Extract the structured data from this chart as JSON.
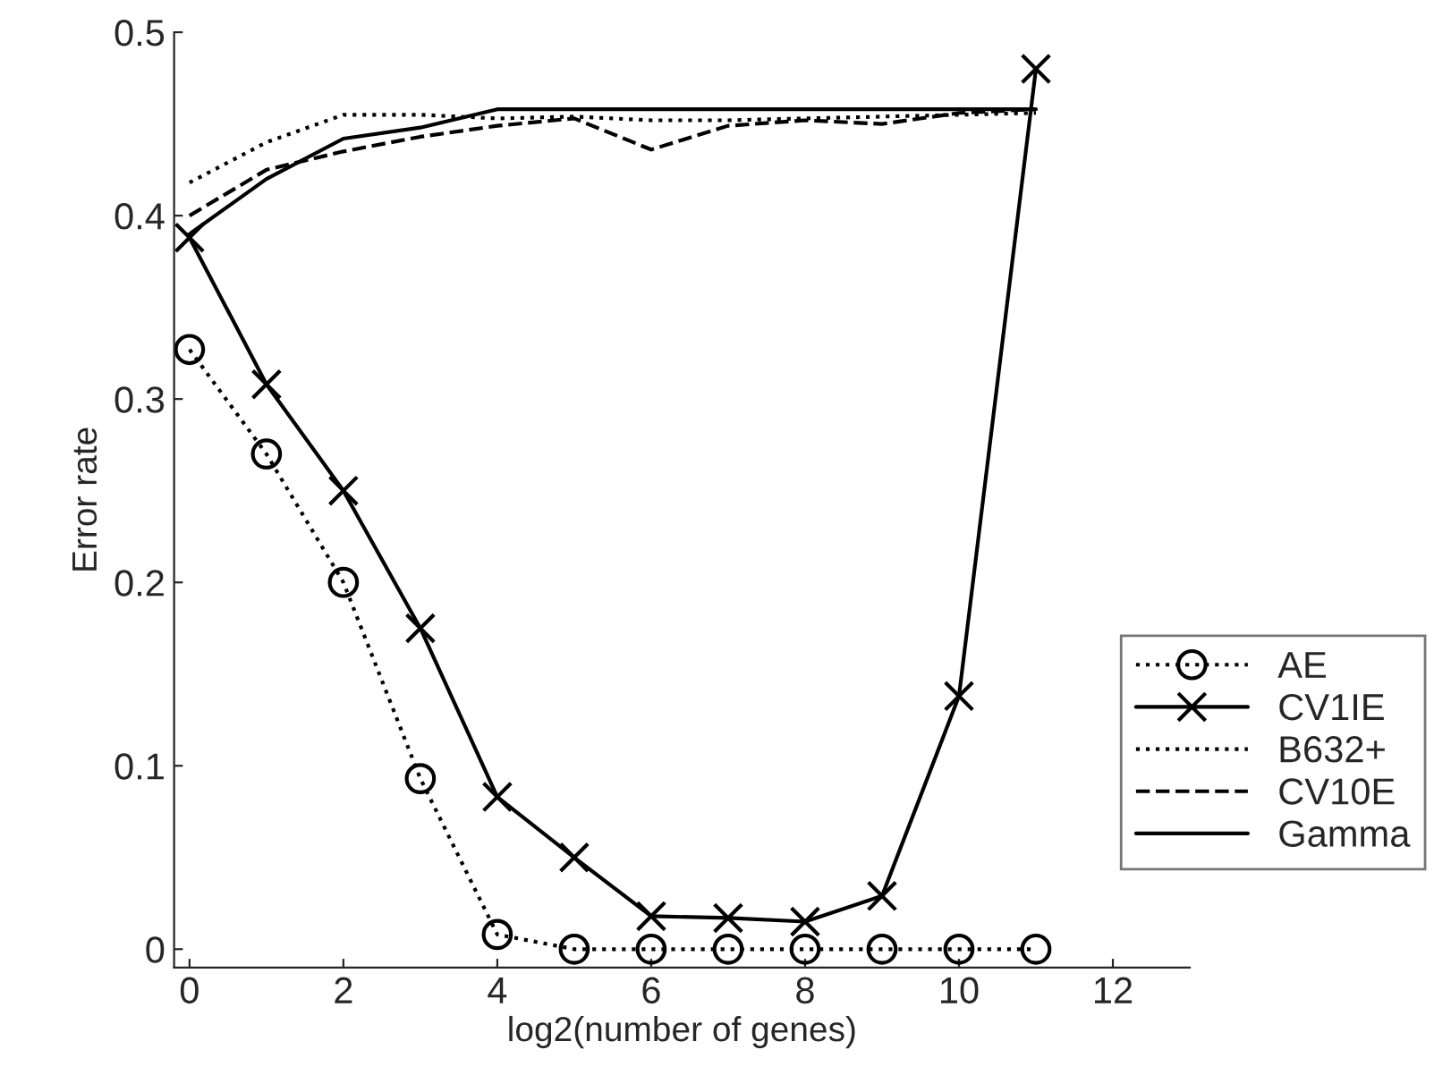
{
  "chart_data": {
    "type": "line",
    "xlabel": "log2(number of genes)",
    "ylabel": "Error rate",
    "x": [
      0,
      1,
      2,
      3,
      4,
      5,
      6,
      7,
      8,
      9,
      10,
      11
    ],
    "series": [
      {
        "name": "AE",
        "color": "#000000",
        "line_style": "dotted",
        "marker": "circle",
        "values": [
          0.327,
          0.27,
          0.2,
          0.093,
          0.008,
          0,
          0,
          0,
          0,
          0,
          0,
          0
        ]
      },
      {
        "name": "CV1IE",
        "color": "#000000",
        "line_style": "solid",
        "marker": "cross",
        "values": [
          0.388,
          0.308,
          0.25,
          0.175,
          0.083,
          0.05,
          0.018,
          0.017,
          0.015,
          0.029,
          0.138,
          0.48
        ]
      },
      {
        "name": "B632+",
        "color": "#000000",
        "line_style": "dotted",
        "marker": "none",
        "values": [
          0.418,
          0.44,
          0.455,
          0.455,
          0.453,
          0.454,
          0.452,
          0.452,
          0.453,
          0.454,
          0.455,
          0.456
        ]
      },
      {
        "name": "CV10E",
        "color": "#000000",
        "line_style": "dashed",
        "marker": "none",
        "values": [
          0.4,
          0.425,
          0.435,
          0.443,
          0.449,
          0.453,
          0.436,
          0.449,
          0.452,
          0.45,
          0.456,
          0.458
        ]
      },
      {
        "name": "Gamma",
        "color": "#000000",
        "line_style": "solid",
        "marker": "none",
        "values": [
          0.39,
          0.42,
          0.442,
          0.448,
          0.458,
          0.458,
          0.458,
          0.458,
          0.458,
          0.458,
          0.458,
          0.458
        ]
      }
    ],
    "xlim": [
      -0.2,
      13
    ],
    "ylim": [
      -0.01,
      0.5
    ],
    "xticks": [
      0,
      2,
      4,
      6,
      8,
      10,
      12
    ],
    "yticks": [
      0,
      0.1,
      0.2,
      0.3,
      0.4,
      0.5
    ],
    "grid": false,
    "legend": "right"
  }
}
